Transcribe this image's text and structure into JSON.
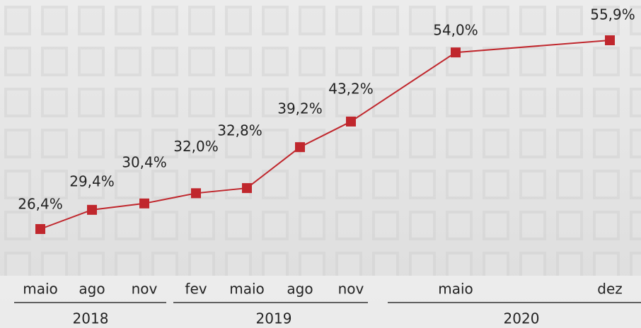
{
  "chart_data": {
    "type": "line",
    "categories": [
      "maio",
      "ago",
      "nov",
      "fev",
      "maio",
      "ago",
      "nov",
      "maio",
      "dez"
    ],
    "years": [
      "2018",
      "2019",
      "2020"
    ],
    "values": [
      26.4,
      29.4,
      30.4,
      32.0,
      32.8,
      39.2,
      43.2,
      54.0,
      55.9
    ],
    "value_labels": [
      "26,4%",
      "29,4%",
      "30,4%",
      "32,0%",
      "32,8%",
      "39,2%",
      "43,2%",
      "54,0%",
      "55,9%"
    ],
    "color": "#c0272d"
  }
}
